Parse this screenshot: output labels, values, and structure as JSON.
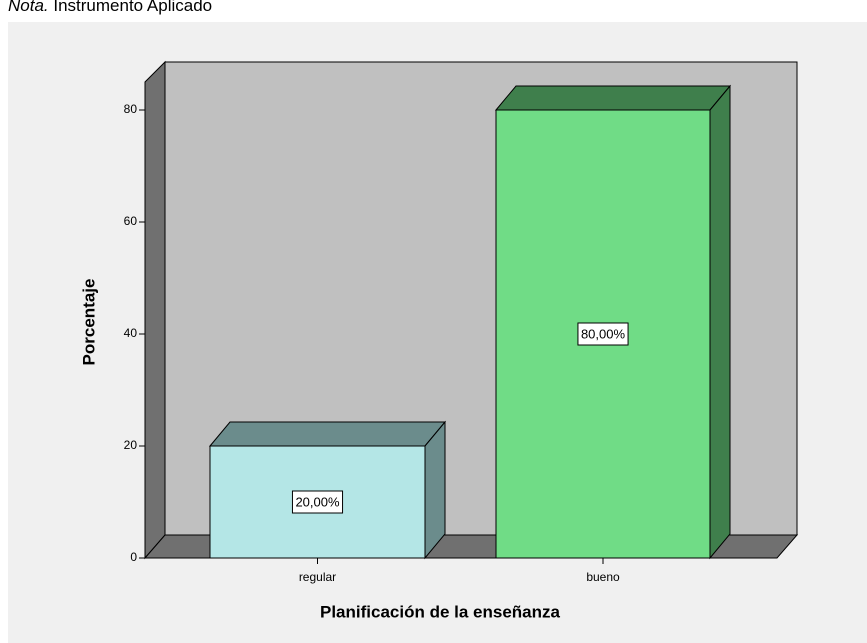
{
  "note": {
    "label": "Nota.",
    "text": "Instrumento Aplicado"
  },
  "chart_data": {
    "type": "bar3d",
    "categories": [
      "regular",
      "bueno"
    ],
    "values": [
      20,
      80
    ],
    "value_labels": [
      "20,00%",
      "80,00%"
    ],
    "colors": [
      "#b4e6e6",
      "#70dc86"
    ],
    "side_colors": [
      "#6b8c8c",
      "#3f7f4c"
    ],
    "xlabel": "Planificación de la enseñanza",
    "ylabel": "Porcentaje",
    "ylim": [
      0,
      85
    ],
    "yticks": [
      0,
      20,
      40,
      60,
      80
    ]
  }
}
